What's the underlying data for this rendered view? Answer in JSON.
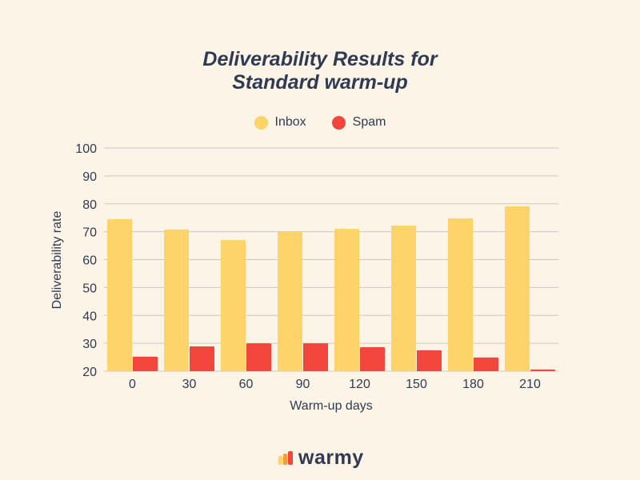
{
  "chart_data": {
    "type": "bar",
    "title_line1": "Deliverability Results for",
    "title_line2": "Standard warm-up",
    "xlabel": "Warm-up days",
    "ylabel": "Deliverability rate",
    "categories": [
      "0",
      "30",
      "60",
      "90",
      "120",
      "150",
      "180",
      "210"
    ],
    "series": [
      {
        "name": "Inbox",
        "color": "#fdd36a",
        "values": [
          74.5,
          70.8,
          67.0,
          69.9,
          71.0,
          72.2,
          74.8,
          79.1
        ]
      },
      {
        "name": "Spam",
        "color": "#f2453b",
        "values": [
          25.2,
          28.9,
          30.0,
          30.0,
          28.6,
          27.5,
          24.9,
          20.6
        ]
      }
    ],
    "ylim": [
      20,
      100
    ],
    "yticks": [
      20,
      30,
      40,
      50,
      60,
      70,
      80,
      90,
      100
    ],
    "grid": true,
    "legend_position": "top-center"
  },
  "brand": {
    "name": "warmy"
  }
}
